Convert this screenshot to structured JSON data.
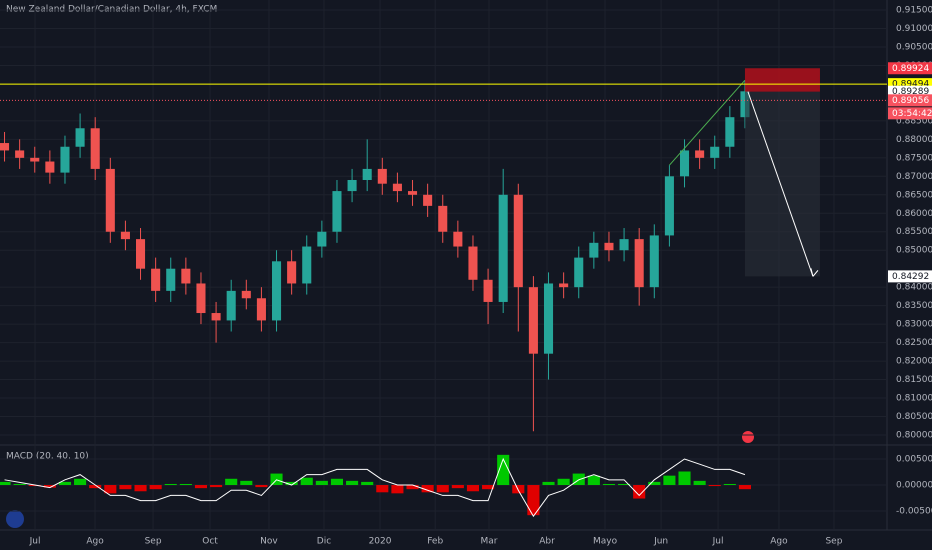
{
  "chart_data": [
    {
      "type": "candlestick",
      "title": "New Zealand Dollar/Canadian Dollar, 4h, FXCM",
      "open": [
        0.879,
        0.877,
        0.875,
        0.874,
        0.871,
        0.878,
        0.883,
        0.872,
        0.855,
        0.853,
        0.845,
        0.839,
        0.845,
        0.841,
        0.833,
        0.831,
        0.839,
        0.837,
        0.831,
        0.847,
        0.841,
        0.851,
        0.855,
        0.866,
        0.869,
        0.872,
        0.868,
        0.866,
        0.865,
        0.862,
        0.855,
        0.851,
        0.842,
        0.836,
        0.865,
        0.84,
        0.822,
        0.841,
        0.84,
        0.848,
        0.852,
        0.85,
        0.853,
        0.84,
        0.854,
        0.87,
        0.877,
        0.875,
        0.878,
        0.886
      ],
      "high": [
        0.882,
        0.88,
        0.878,
        0.877,
        0.881,
        0.887,
        0.886,
        0.875,
        0.858,
        0.856,
        0.848,
        0.848,
        0.848,
        0.844,
        0.836,
        0.842,
        0.842,
        0.84,
        0.85,
        0.85,
        0.854,
        0.858,
        0.869,
        0.872,
        0.88,
        0.875,
        0.871,
        0.869,
        0.868,
        0.865,
        0.858,
        0.854,
        0.845,
        0.872,
        0.868,
        0.843,
        0.844,
        0.844,
        0.851,
        0.855,
        0.855,
        0.856,
        0.856,
        0.857,
        0.873,
        0.88,
        0.88,
        0.881,
        0.889,
        0.896
      ],
      "low": [
        0.874,
        0.872,
        0.871,
        0.868,
        0.868,
        0.875,
        0.869,
        0.852,
        0.85,
        0.842,
        0.836,
        0.836,
        0.838,
        0.83,
        0.825,
        0.828,
        0.834,
        0.828,
        0.828,
        0.838,
        0.838,
        0.848,
        0.852,
        0.863,
        0.866,
        0.865,
        0.863,
        0.862,
        0.859,
        0.852,
        0.848,
        0.839,
        0.83,
        0.833,
        0.828,
        0.801,
        0.815,
        0.837,
        0.837,
        0.845,
        0.847,
        0.847,
        0.835,
        0.837,
        0.851,
        0.867,
        0.872,
        0.872,
        0.875,
        0.883
      ],
      "close": [
        0.877,
        0.875,
        0.874,
        0.871,
        0.878,
        0.883,
        0.872,
        0.855,
        0.853,
        0.845,
        0.839,
        0.845,
        0.841,
        0.833,
        0.831,
        0.839,
        0.837,
        0.831,
        0.847,
        0.841,
        0.851,
        0.855,
        0.866,
        0.869,
        0.872,
        0.868,
        0.866,
        0.865,
        0.862,
        0.855,
        0.851,
        0.842,
        0.836,
        0.865,
        0.84,
        0.822,
        0.841,
        0.84,
        0.848,
        0.852,
        0.85,
        0.853,
        0.84,
        0.854,
        0.87,
        0.877,
        0.875,
        0.878,
        0.886,
        0.893
      ],
      "up_color": "#26a69a",
      "down_color": "#ef5350",
      "xlim": [
        0,
        58.7
      ],
      "ylim": [
        0.79729,
        0.91771
      ],
      "xticks": [
        {
          "value": 2.32,
          "label": "Jul"
        },
        {
          "value": 6.29,
          "label": "Ago"
        },
        {
          "value": 10.13,
          "label": "Sep"
        },
        {
          "value": 13.9,
          "label": "Oct"
        },
        {
          "value": 17.8,
          "label": "Nov"
        },
        {
          "value": 21.44,
          "label": "Dic"
        },
        {
          "value": 25.15,
          "label": "2020"
        },
        {
          "value": 28.8,
          "label": "Feb"
        },
        {
          "value": 32.36,
          "label": "Mar"
        },
        {
          "value": 36.2,
          "label": "Abr"
        },
        {
          "value": 40.04,
          "label": "Mayo"
        },
        {
          "value": 43.75,
          "label": "Jun"
        },
        {
          "value": 47.52,
          "label": "Jul"
        },
        {
          "value": 51.55,
          "label": "Ago"
        },
        {
          "value": 55.19,
          "label": "Sep"
        }
      ],
      "yticks": [
        {
          "value": 0.915,
          "label": "0.91500"
        },
        {
          "value": 0.91,
          "label": "0.91000"
        },
        {
          "value": 0.905,
          "label": "0.90500"
        },
        {
          "value": 0.9,
          "label": "0.90000"
        },
        {
          "value": 0.885,
          "label": "0.88500"
        },
        {
          "value": 0.88,
          "label": "0.88000"
        },
        {
          "value": 0.875,
          "label": "0.87500"
        },
        {
          "value": 0.87,
          "label": "0.87000"
        },
        {
          "value": 0.865,
          "label": "0.86500"
        },
        {
          "value": 0.86,
          "label": "0.86000"
        },
        {
          "value": 0.855,
          "label": "0.85500"
        },
        {
          "value": 0.85,
          "label": "0.85000"
        },
        {
          "value": 0.84,
          "label": "0.84000"
        },
        {
          "value": 0.835,
          "label": "0.83500"
        },
        {
          "value": 0.83,
          "label": "0.83000"
        },
        {
          "value": 0.825,
          "label": "0.82500"
        },
        {
          "value": 0.82,
          "label": "0.82000"
        },
        {
          "value": 0.815,
          "label": "0.81500"
        },
        {
          "value": 0.81,
          "label": "0.81000"
        },
        {
          "value": 0.805,
          "label": "0.80500"
        },
        {
          "value": 0.8,
          "label": "0.80000"
        }
      ],
      "grid": true,
      "price_labels": [
        {
          "value": 0.89924,
          "label": "0.89924",
          "color": "#f23645",
          "text_color": "#ffffff"
        },
        {
          "value": 0.89494,
          "label": "0.89494",
          "color": "#ffff00",
          "text_color": "#131722",
          "line": "solid"
        },
        {
          "value": 0.89289,
          "label": "0.89289",
          "color": "#ffffff",
          "text_color": "#131722"
        },
        {
          "value": 0.89056,
          "label": "0.89056",
          "color": "#f7525f",
          "text_color": "#ffffff",
          "line": "dotted"
        },
        {
          "value": 0.84292,
          "label": "0.84292",
          "color": "#ffffff",
          "text_color": "#131722"
        }
      ],
      "countdown": "03:54:42",
      "position": {
        "entry": 0.89289,
        "stop": 0.89924,
        "target": 0.84292
      }
    },
    {
      "type": "macd",
      "title": "MACD (20, 40, 10)",
      "line": {
        "color": "#ffffff",
        "values": [
          0.001,
          0.0005,
          0,
          -0.0005,
          0.001,
          0.002,
          0,
          -0.002,
          -0.002,
          -0.003,
          -0.003,
          -0.002,
          -0.002,
          -0.003,
          -0.003,
          -0.001,
          -0.001,
          -0.002,
          0.001,
          0,
          0.002,
          0.002,
          0.003,
          0.003,
          0.003,
          0.001,
          0,
          0,
          -0.001,
          -0.002,
          -0.002,
          -0.003,
          -0.003,
          0.005,
          -0.001,
          -0.006,
          -0.002,
          -0.001,
          0.001,
          0.002,
          0.001,
          0.001,
          -0.002,
          0.001,
          0.003,
          0.005,
          0.004,
          0.003,
          0.003,
          0.002
        ]
      },
      "histogram": {
        "up_color": "#00c800",
        "down_color": "#e00000",
        "values": [
          0.0006,
          0.0002,
          -0.0002,
          -0.0005,
          0.0006,
          0.0012,
          -0.0006,
          -0.0016,
          -0.0008,
          -0.0012,
          -0.0008,
          0.0002,
          0.0002,
          -0.0006,
          -0.0004,
          0.0012,
          0.0008,
          -0.0004,
          0.0022,
          0.0006,
          0.0014,
          0.0008,
          0.0012,
          0.0008,
          0.0006,
          -0.0014,
          -0.0016,
          -0.0008,
          -0.0014,
          -0.0014,
          -0.0006,
          -0.0012,
          -0.0008,
          0.0058,
          -0.0016,
          -0.0058,
          0.0006,
          0.0012,
          0.0022,
          0.0018,
          0.0002,
          0.0002,
          -0.0026,
          0.0006,
          0.0018,
          0.0026,
          0.0008,
          -0.0002,
          0.0002,
          -0.0008
        ]
      },
      "ylim": [
        -0.00865,
        0.00731
      ],
      "yticks": [
        {
          "value": 0.005,
          "label": "0.00500"
        },
        {
          "value": 0,
          "label": "0.00000"
        },
        {
          "value": -0.005,
          "label": "-0.00500"
        }
      ]
    }
  ]
}
